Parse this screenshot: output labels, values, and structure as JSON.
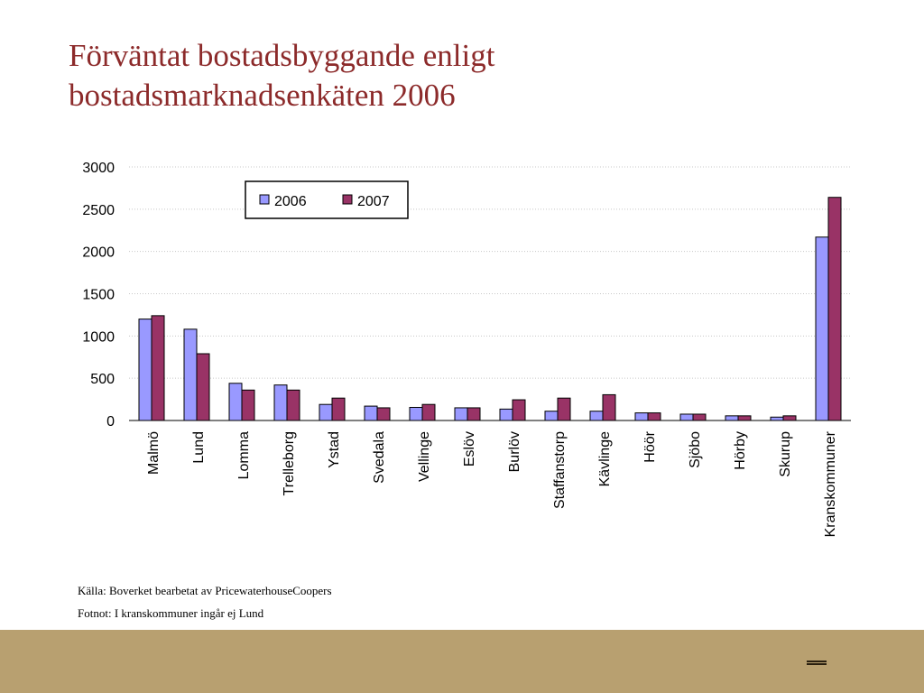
{
  "slide": {
    "title_line1": "Förväntat bostadsbyggande enligt",
    "title_line2": "bostadsmarknadsenkäten 2006",
    "source": "Källa: Boverket bearbetat av PricewaterhouseCoopers",
    "footnote": "Fotnot: I kranskommuner ingår ej Lund"
  },
  "colors": {
    "title": "#8c2a2a",
    "series_2006": "#9999ff",
    "series_2007": "#993366",
    "footer": "#b8a070"
  },
  "chart_data": {
    "type": "bar",
    "title": "",
    "xlabel": "",
    "ylabel": "",
    "ylim": [
      0,
      3000
    ],
    "yticks": [
      0,
      500,
      1000,
      1500,
      2000,
      2500,
      3000
    ],
    "grid": true,
    "legend_position": "top-left",
    "categories": [
      "Malmö",
      "Lund",
      "Lomma",
      "Trelleborg",
      "Ystad",
      "Svedala",
      "Vellinge",
      "Eslöv",
      "Burlöv",
      "Staffanstorp",
      "Kävlinge",
      "Höör",
      "Sjöbo",
      "Hörby",
      "Skurup",
      "Kranskommuner"
    ],
    "series": [
      {
        "name": "2006",
        "values": [
          1200,
          1080,
          440,
          420,
          190,
          170,
          155,
          150,
          135,
          110,
          110,
          90,
          75,
          55,
          40,
          2170
        ]
      },
      {
        "name": "2007",
        "values": [
          1240,
          790,
          360,
          360,
          265,
          150,
          190,
          150,
          245,
          265,
          305,
          90,
          75,
          55,
          55,
          2640
        ]
      }
    ]
  }
}
